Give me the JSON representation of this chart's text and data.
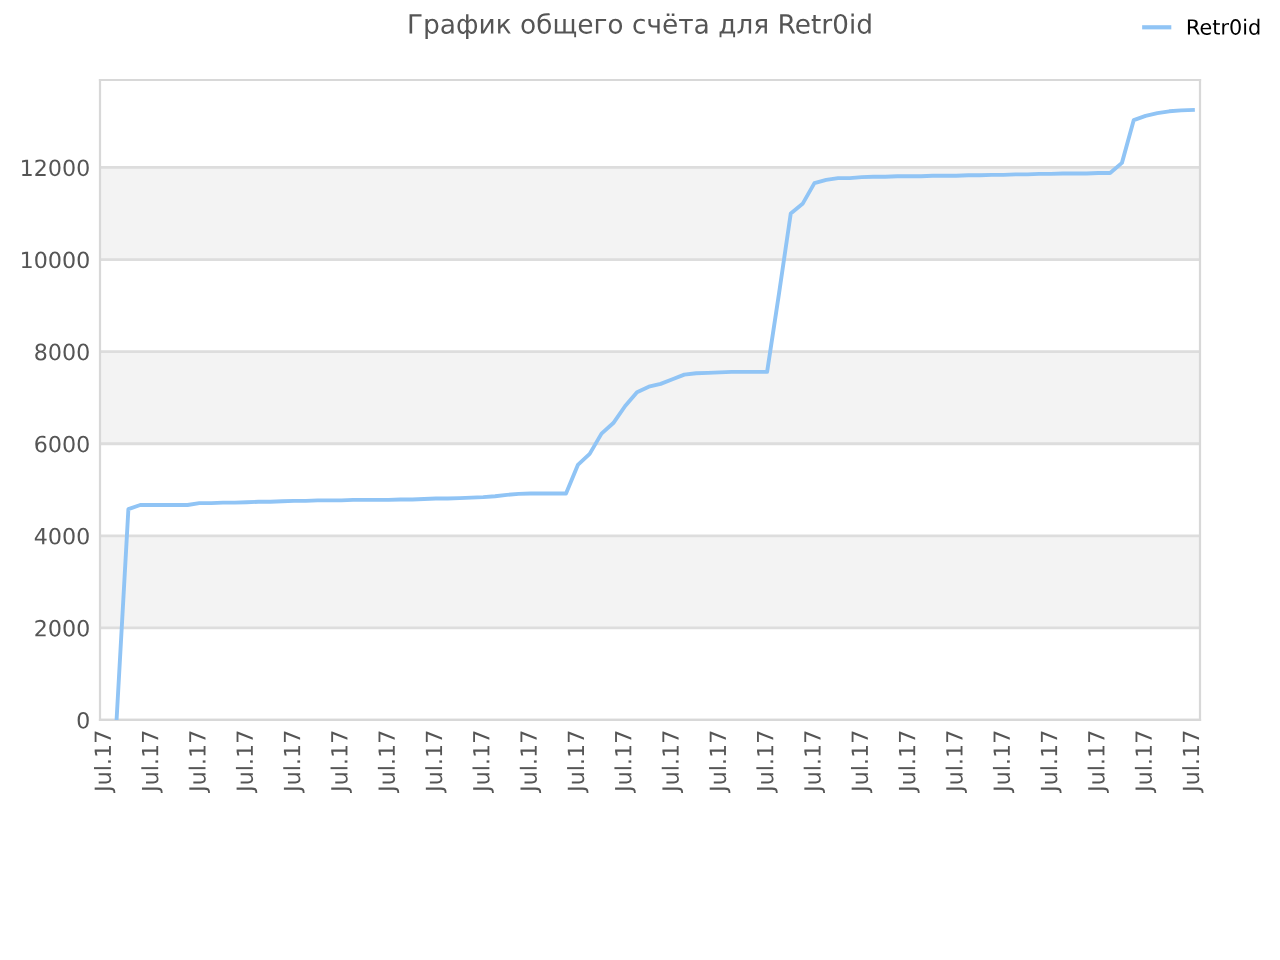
{
  "chart_data": {
    "type": "line",
    "title": "График общего счёта для Retr0id",
    "categories": [
      "Jul.17",
      null,
      null,
      null,
      "Jul.17",
      null,
      null,
      null,
      "Jul.17",
      null,
      null,
      null,
      "Jul.17",
      null,
      null,
      null,
      "Jul.17",
      null,
      null,
      null,
      "Jul.17",
      null,
      null,
      null,
      "Jul.17",
      null,
      null,
      null,
      "Jul.17",
      null,
      null,
      null,
      "Jul.17",
      null,
      null,
      null,
      "Jul.17",
      null,
      null,
      null,
      "Jul.17",
      null,
      null,
      null,
      "Jul.17",
      null,
      null,
      null,
      "Jul.17",
      null,
      null,
      null,
      "Jul.17",
      null,
      null,
      null,
      "Jul.17",
      null,
      null,
      null,
      "Jul.17",
      null,
      null,
      null,
      "Jul.17",
      null,
      null,
      null,
      "Jul.17",
      null,
      null,
      null,
      "Jul.17",
      null,
      null,
      null,
      "Jul.17",
      null,
      null,
      null,
      "Jul.17",
      null,
      null,
      null,
      "Jul.17",
      null,
      null,
      null,
      "Jul.17",
      null,
      null,
      null,
      "Jul.17"
    ],
    "series": [
      {
        "name": "Retr0id",
        "color": "#90c4f5",
        "values": [
          null,
          0,
          4580,
          4670,
          4670,
          4670,
          4670,
          4670,
          4710,
          4710,
          4720,
          4720,
          4730,
          4740,
          4740,
          4750,
          4760,
          4760,
          4770,
          4770,
          4770,
          4780,
          4780,
          4780,
          4780,
          4790,
          4790,
          4800,
          4810,
          4810,
          4820,
          4830,
          4840,
          4860,
          4890,
          4910,
          4920,
          4920,
          4920,
          4920,
          5540,
          5780,
          6220,
          6450,
          6820,
          7120,
          7240,
          7300,
          7400,
          7500,
          7530,
          7540,
          7550,
          7560,
          7560,
          7560,
          7560,
          9250,
          11000,
          11210,
          11660,
          11730,
          11770,
          11770,
          11790,
          11800,
          11800,
          11810,
          11810,
          11810,
          11820,
          11820,
          11820,
          11830,
          11830,
          11840,
          11840,
          11850,
          11850,
          11860,
          11860,
          11870,
          11870,
          11870,
          11880,
          11880,
          12100,
          13030,
          13120,
          13180,
          13220,
          13240,
          13250
        ]
      }
    ],
    "ylim": [
      0,
      13900
    ],
    "yticks": [
      0,
      2000,
      4000,
      6000,
      8000,
      10000,
      12000
    ],
    "grid": "y",
    "legend": "top right",
    "marker": "none",
    "line_style": "solid"
  }
}
